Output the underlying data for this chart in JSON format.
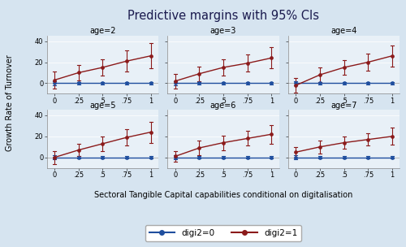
{
  "title": "Predictive margins with 95% CIs",
  "xlabel": "Sectoral Tangible Capital capabilities conditional on digitalisation",
  "ylabel": "Growth Rate of Turnover",
  "figure_bg": "#d6e4f0",
  "panel_bg": "#e8f0f7",
  "ages": [
    2,
    3,
    4,
    5,
    6,
    7
  ],
  "x_values": [
    0,
    0.25,
    0.5,
    0.75,
    1.0
  ],
  "x_tick_labels": [
    "0",
    ".25",
    ".5",
    ".75",
    "1"
  ],
  "ylim": [
    -10,
    45
  ],
  "yticks": [
    0,
    20,
    40
  ],
  "ytick_labels": [
    "0",
    "20",
    "40"
  ],
  "panels": {
    "age2": {
      "digi1_mean": [
        3,
        10,
        15,
        21,
        26
      ],
      "digi1_ci_lower": [
        -5,
        3,
        7,
        11,
        14
      ],
      "digi1_ci_upper": [
        11,
        17,
        23,
        31,
        38
      ],
      "digi0_mean": [
        0,
        0,
        0,
        0,
        0
      ],
      "digi0_ci_lower": [
        -2,
        -1,
        -1,
        -1,
        -1
      ],
      "digi0_ci_upper": [
        2,
        1,
        1,
        1,
        1
      ]
    },
    "age3": {
      "digi1_mean": [
        2,
        9,
        15,
        19,
        24
      ],
      "digi1_ci_lower": [
        -5,
        2,
        7,
        11,
        14
      ],
      "digi1_ci_upper": [
        9,
        16,
        23,
        27,
        34
      ],
      "digi0_mean": [
        0,
        0,
        0,
        0,
        0
      ],
      "digi0_ci_lower": [
        -2,
        -1,
        -1,
        -1,
        -1
      ],
      "digi0_ci_upper": [
        2,
        1,
        1,
        1,
        1
      ]
    },
    "age4": {
      "digi1_mean": [
        -2,
        8,
        15,
        20,
        26
      ],
      "digi1_ci_lower": [
        -9,
        1,
        8,
        12,
        16
      ],
      "digi1_ci_upper": [
        5,
        15,
        22,
        28,
        36
      ],
      "digi0_mean": [
        0,
        0,
        0,
        0,
        0
      ],
      "digi0_ci_lower": [
        -2,
        -1,
        -1,
        -1,
        -1
      ],
      "digi0_ci_upper": [
        2,
        1,
        1,
        1,
        1
      ]
    },
    "age5": {
      "digi1_mean": [
        0,
        7,
        13,
        19,
        24
      ],
      "digi1_ci_lower": [
        -6,
        1,
        6,
        11,
        14
      ],
      "digi1_ci_upper": [
        6,
        13,
        20,
        27,
        34
      ],
      "digi0_mean": [
        0,
        0,
        0,
        0,
        0
      ],
      "digi0_ci_lower": [
        -2,
        -1,
        -1,
        -1,
        -1
      ],
      "digi0_ci_upper": [
        2,
        1,
        1,
        1,
        1
      ]
    },
    "age6": {
      "digi1_mean": [
        1,
        9,
        14,
        18,
        22
      ],
      "digi1_ci_lower": [
        -4,
        2,
        7,
        11,
        13
      ],
      "digi1_ci_upper": [
        6,
        16,
        21,
        25,
        31
      ],
      "digi0_mean": [
        0,
        0,
        0,
        0,
        0
      ],
      "digi0_ci_lower": [
        -2,
        -1,
        -1,
        -1,
        -1
      ],
      "digi0_ci_upper": [
        2,
        1,
        1,
        1,
        1
      ]
    },
    "age7": {
      "digi1_mean": [
        5,
        10,
        14,
        17,
        20
      ],
      "digi1_ci_lower": [
        0,
        4,
        8,
        11,
        12
      ],
      "digi1_ci_upper": [
        10,
        16,
        20,
        23,
        28
      ],
      "digi0_mean": [
        0,
        0,
        0,
        0,
        0
      ],
      "digi0_ci_lower": [
        -2,
        -1,
        -1,
        -1,
        -1
      ],
      "digi0_ci_upper": [
        2,
        1,
        1,
        1,
        1
      ]
    }
  },
  "digi1_color": "#8b1a1a",
  "digi0_color": "#1f4e9e",
  "legend_labels": [
    "digi2=0",
    "digi2=1"
  ],
  "title_fontsize": 10.5,
  "label_fontsize": 7,
  "tick_fontsize": 6,
  "subtitle_fontsize": 7
}
